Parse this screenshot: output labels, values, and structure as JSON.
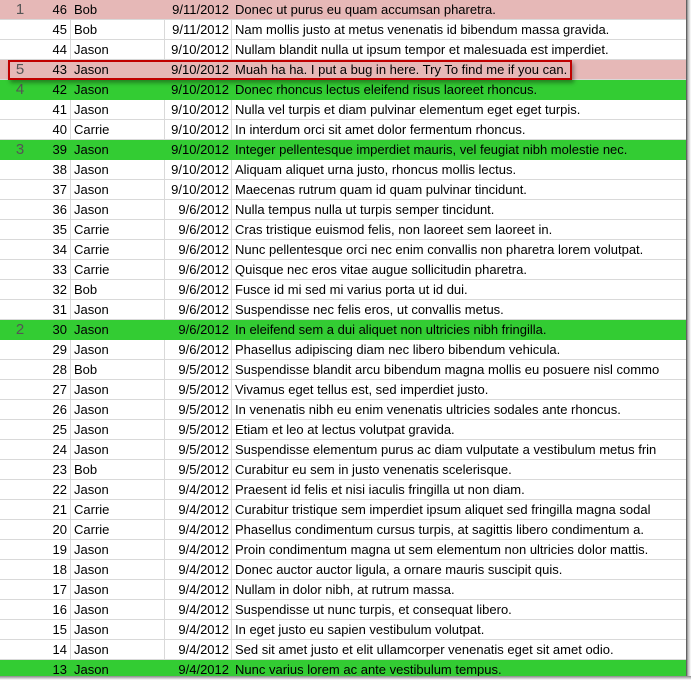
{
  "colors": {
    "pink_highlight": "#e6b8b7",
    "green_highlight": "#33cc33",
    "bug_box": "#c00000"
  },
  "rows": [
    {
      "mark": "1",
      "id": "46",
      "name": "Bob",
      "date": "9/11/2012",
      "text": "Donec ut purus eu quam accumsan pharetra.",
      "highlight": "pink"
    },
    {
      "mark": "",
      "id": "45",
      "name": "Bob",
      "date": "9/11/2012",
      "text": "Nam mollis justo at metus venenatis id bibendum massa gravida.",
      "highlight": ""
    },
    {
      "mark": "",
      "id": "44",
      "name": "Jason",
      "date": "9/10/2012",
      "text": "Nullam blandit nulla ut ipsum tempor et malesuada est imperdiet.",
      "highlight": ""
    },
    {
      "mark": "5",
      "id": "43",
      "name": "Jason",
      "date": "9/10/2012",
      "text": "Muah ha ha. I put a bug in here. Try To find me if you can.",
      "highlight": "pink"
    },
    {
      "mark": "4",
      "id": "42",
      "name": "Jason",
      "date": "9/10/2012",
      "text": "Donec rhoncus lectus eleifend risus laoreet rhoncus.",
      "highlight": "green"
    },
    {
      "mark": "",
      "id": "41",
      "name": "Jason",
      "date": "9/10/2012",
      "text": "Nulla vel turpis et diam pulvinar elementum eget eget turpis.",
      "highlight": ""
    },
    {
      "mark": "",
      "id": "40",
      "name": "Carrie",
      "date": "9/10/2012",
      "text": "In interdum orci sit amet dolor fermentum rhoncus.",
      "highlight": ""
    },
    {
      "mark": "3",
      "id": "39",
      "name": "Jason",
      "date": "9/10/2012",
      "text": "Integer pellentesque imperdiet mauris, vel feugiat nibh molestie nec.",
      "highlight": "green"
    },
    {
      "mark": "",
      "id": "38",
      "name": "Jason",
      "date": "9/10/2012",
      "text": "Aliquam aliquet urna justo, rhoncus mollis lectus.",
      "highlight": ""
    },
    {
      "mark": "",
      "id": "37",
      "name": "Jason",
      "date": "9/10/2012",
      "text": "Maecenas rutrum quam id quam pulvinar tincidunt.",
      "highlight": ""
    },
    {
      "mark": "",
      "id": "36",
      "name": "Jason",
      "date": "9/6/2012",
      "text": "Nulla tempus nulla ut turpis semper tincidunt.",
      "highlight": ""
    },
    {
      "mark": "",
      "id": "35",
      "name": "Carrie",
      "date": "9/6/2012",
      "text": "Cras tristique euismod felis, non laoreet sem laoreet in.",
      "highlight": ""
    },
    {
      "mark": "",
      "id": "34",
      "name": "Carrie",
      "date": "9/6/2012",
      "text": "Nunc pellentesque orci nec enim convallis non pharetra lorem volutpat.",
      "highlight": ""
    },
    {
      "mark": "",
      "id": "33",
      "name": "Carrie",
      "date": "9/6/2012",
      "text": "Quisque nec eros vitae augue sollicitudin pharetra.",
      "highlight": ""
    },
    {
      "mark": "",
      "id": "32",
      "name": "Bob",
      "date": "9/6/2012",
      "text": "Fusce id mi sed mi varius porta ut id dui.",
      "highlight": ""
    },
    {
      "mark": "",
      "id": "31",
      "name": "Jason",
      "date": "9/6/2012",
      "text": "Suspendisse nec felis eros, ut convallis metus.",
      "highlight": ""
    },
    {
      "mark": "2",
      "id": "30",
      "name": "Jason",
      "date": "9/6/2012",
      "text": "In eleifend sem a dui aliquet non ultricies nibh fringilla.",
      "highlight": "green"
    },
    {
      "mark": "",
      "id": "29",
      "name": "Jason",
      "date": "9/6/2012",
      "text": "Phasellus adipiscing diam nec libero bibendum vehicula.",
      "highlight": ""
    },
    {
      "mark": "",
      "id": "28",
      "name": "Bob",
      "date": "9/5/2012",
      "text": "Suspendisse blandit arcu bibendum magna mollis eu posuere nisl commo",
      "highlight": ""
    },
    {
      "mark": "",
      "id": "27",
      "name": "Jason",
      "date": "9/5/2012",
      "text": "Vivamus eget tellus est, sed imperdiet justo.",
      "highlight": ""
    },
    {
      "mark": "",
      "id": "26",
      "name": "Jason",
      "date": "9/5/2012",
      "text": "In venenatis nibh eu enim venenatis ultricies sodales ante rhoncus.",
      "highlight": ""
    },
    {
      "mark": "",
      "id": "25",
      "name": "Jason",
      "date": "9/5/2012",
      "text": "Etiam et leo at lectus volutpat gravida.",
      "highlight": ""
    },
    {
      "mark": "",
      "id": "24",
      "name": "Jason",
      "date": "9/5/2012",
      "text": "Suspendisse elementum purus ac diam vulputate a vestibulum metus frin",
      "highlight": ""
    },
    {
      "mark": "",
      "id": "23",
      "name": "Bob",
      "date": "9/5/2012",
      "text": "Curabitur eu sem in justo venenatis scelerisque.",
      "highlight": ""
    },
    {
      "mark": "",
      "id": "22",
      "name": "Jason",
      "date": "9/4/2012",
      "text": "Praesent id felis et nisi iaculis fringilla ut non diam.",
      "highlight": ""
    },
    {
      "mark": "",
      "id": "21",
      "name": "Carrie",
      "date": "9/4/2012",
      "text": "Curabitur tristique sem imperdiet ipsum aliquet sed fringilla magna sodal",
      "highlight": ""
    },
    {
      "mark": "",
      "id": "20",
      "name": "Carrie",
      "date": "9/4/2012",
      "text": "Phasellus condimentum cursus turpis, at sagittis libero condimentum a.",
      "highlight": ""
    },
    {
      "mark": "",
      "id": "19",
      "name": "Jason",
      "date": "9/4/2012",
      "text": "Proin condimentum magna ut sem elementum non ultricies dolor mattis.",
      "highlight": ""
    },
    {
      "mark": "",
      "id": "18",
      "name": "Jason",
      "date": "9/4/2012",
      "text": "Donec auctor auctor ligula, a ornare mauris suscipit quis.",
      "highlight": ""
    },
    {
      "mark": "",
      "id": "17",
      "name": "Jason",
      "date": "9/4/2012",
      "text": "Nullam in dolor nibh, at rutrum massa.",
      "highlight": ""
    },
    {
      "mark": "",
      "id": "16",
      "name": "Jason",
      "date": "9/4/2012",
      "text": "Suspendisse ut nunc turpis, et consequat libero.",
      "highlight": ""
    },
    {
      "mark": "",
      "id": "15",
      "name": "Jason",
      "date": "9/4/2012",
      "text": "In eget justo eu sapien vestibulum volutpat.",
      "highlight": ""
    },
    {
      "mark": "",
      "id": "14",
      "name": "Jason",
      "date": "9/4/2012",
      "text": "Sed sit amet justo et elit ullamcorper venenatis eget sit amet odio.",
      "highlight": ""
    },
    {
      "mark": "",
      "id": "13",
      "name": "Jason",
      "date": "9/4/2012",
      "text": "Nunc varius lorem ac ante vestibulum tempus.",
      "highlight": "green"
    }
  ]
}
